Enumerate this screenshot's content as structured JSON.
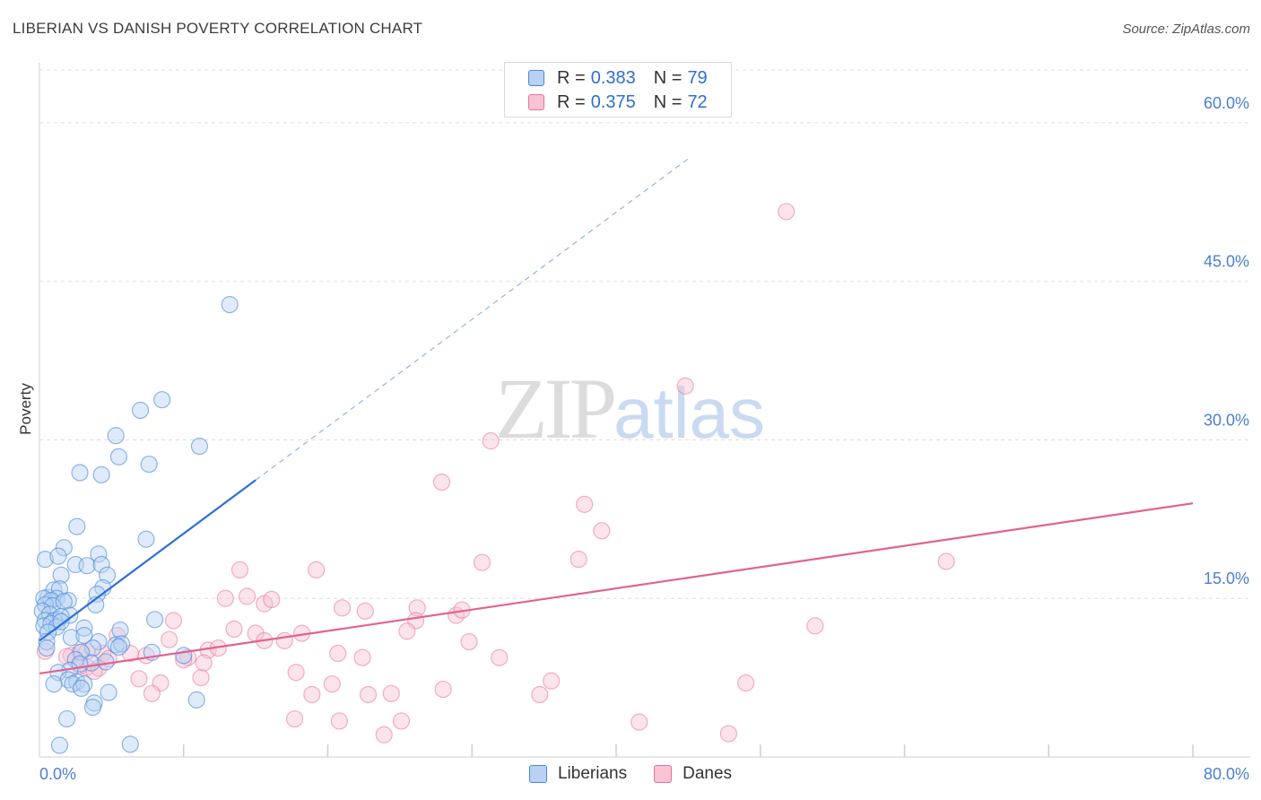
{
  "header": {
    "title": "LIBERIAN VS DANISH POVERTY CORRELATION CHART",
    "source": "Source: ZipAtlas.com"
  },
  "watermark": {
    "zip": "ZIP",
    "atlas": "atlas"
  },
  "colors": {
    "liberians": "#4a86d8",
    "liberians_fill": "#b9d2f3",
    "danes": "#e7719b",
    "danes_fill": "#f7c3d5",
    "tick_label": "#4a7fd0",
    "grid": "#dddddd"
  },
  "legend_top": {
    "rows": [
      {
        "r_label": "R =",
        "r_value": "0.383",
        "n_label": "N =",
        "n_value": "79"
      },
      {
        "r_label": "R =",
        "r_value": "0.375",
        "n_label": "N =",
        "n_value": "72"
      }
    ]
  },
  "legend_bottom": {
    "liberians": "Liberians",
    "danes": "Danes"
  },
  "chart_data": {
    "type": "scatter",
    "title": "LIBERIAN VS DANISH POVERTY CORRELATION CHART",
    "xlabel": "",
    "ylabel": "Poverty",
    "xlim": [
      0,
      80
    ],
    "ylim": [
      0,
      65
    ],
    "x_tick_labels": [
      "0.0%",
      "80.0%"
    ],
    "y_ticks": [
      15,
      30,
      45,
      60
    ],
    "y_tick_labels": [
      "15.0%",
      "30.0%",
      "45.0%",
      "60.0%"
    ],
    "grid": true,
    "series": [
      {
        "name": "Liberians",
        "r": 0.383,
        "n": 79,
        "trend": {
          "x0": 0,
          "y0": 11.0,
          "x1": 15,
          "y1": 26.2,
          "dashed_to_x": 45
        },
        "points": [
          [
            13.2,
            42.8
          ],
          [
            8.5,
            33.8
          ],
          [
            7.0,
            32.8
          ],
          [
            5.3,
            30.4
          ],
          [
            11.1,
            29.4
          ],
          [
            7.6,
            27.7
          ],
          [
            5.5,
            28.4
          ],
          [
            2.8,
            26.9
          ],
          [
            4.3,
            26.7
          ],
          [
            2.6,
            21.8
          ],
          [
            7.4,
            20.6
          ],
          [
            1.7,
            19.8
          ],
          [
            0.4,
            18.7
          ],
          [
            1.3,
            19.0
          ],
          [
            4.1,
            19.2
          ],
          [
            2.5,
            18.2
          ],
          [
            3.3,
            18.1
          ],
          [
            4.3,
            18.2
          ],
          [
            1.5,
            17.2
          ],
          [
            4.7,
            17.2
          ],
          [
            0.6,
            15.1
          ],
          [
            1.0,
            15.8
          ],
          [
            1.4,
            15.9
          ],
          [
            1.2,
            15.0
          ],
          [
            4.4,
            16.0
          ],
          [
            0.3,
            15.0
          ],
          [
            0.8,
            14.8
          ],
          [
            2.0,
            14.8
          ],
          [
            0.4,
            14.4
          ],
          [
            0.9,
            14.3
          ],
          [
            1.7,
            14.7
          ],
          [
            4.0,
            15.4
          ],
          [
            3.9,
            14.4
          ],
          [
            0.2,
            13.8
          ],
          [
            0.7,
            13.5
          ],
          [
            1.3,
            13.0
          ],
          [
            2.1,
            13.4
          ],
          [
            0.4,
            12.9
          ],
          [
            1.0,
            12.9
          ],
          [
            1.5,
            13.3
          ],
          [
            0.3,
            12.4
          ],
          [
            0.8,
            12.6
          ],
          [
            1.2,
            12.3
          ],
          [
            1.5,
            12.8
          ],
          [
            0.6,
            11.8
          ],
          [
            3.1,
            12.2
          ],
          [
            5.6,
            12.0
          ],
          [
            8.0,
            13.0
          ],
          [
            2.2,
            11.3
          ],
          [
            3.1,
            11.5
          ],
          [
            0.5,
            10.9
          ],
          [
            4.1,
            10.9
          ],
          [
            5.3,
            10.6
          ],
          [
            5.7,
            10.7
          ],
          [
            3.7,
            10.3
          ],
          [
            5.5,
            10.4
          ],
          [
            2.9,
            9.9
          ],
          [
            7.8,
            9.9
          ],
          [
            10.0,
            9.6
          ],
          [
            2.5,
            9.2
          ],
          [
            3.6,
            8.9
          ],
          [
            4.6,
            9.0
          ],
          [
            2.8,
            8.8
          ],
          [
            2.1,
            8.2
          ],
          [
            1.3,
            8.0
          ],
          [
            2.0,
            7.3
          ],
          [
            2.6,
            7.1
          ],
          [
            1.0,
            6.9
          ],
          [
            2.3,
            6.9
          ],
          [
            3.1,
            6.9
          ],
          [
            2.9,
            6.5
          ],
          [
            4.8,
            6.1
          ],
          [
            10.9,
            5.4
          ],
          [
            3.8,
            5.1
          ],
          [
            3.7,
            4.7
          ],
          [
            1.9,
            3.6
          ],
          [
            1.4,
            1.1
          ],
          [
            6.3,
            1.2
          ],
          [
            0.5,
            10.3
          ]
        ]
      },
      {
        "name": "Danes",
        "r": 0.375,
        "n": 72,
        "trend": {
          "x0": 0,
          "y0": 7.9,
          "x1": 80,
          "y1": 24.0
        },
        "points": [
          [
            51.8,
            51.6
          ],
          [
            44.8,
            35.1
          ],
          [
            31.3,
            29.9
          ],
          [
            27.9,
            26.0
          ],
          [
            37.8,
            23.9
          ],
          [
            39.0,
            21.4
          ],
          [
            62.9,
            18.5
          ],
          [
            30.7,
            18.4
          ],
          [
            37.4,
            18.7
          ],
          [
            13.9,
            17.7
          ],
          [
            19.2,
            17.7
          ],
          [
            12.9,
            15.0
          ],
          [
            14.4,
            15.2
          ],
          [
            15.6,
            14.5
          ],
          [
            16.1,
            14.9
          ],
          [
            21.0,
            14.1
          ],
          [
            22.6,
            13.8
          ],
          [
            26.2,
            14.1
          ],
          [
            28.9,
            13.4
          ],
          [
            29.3,
            13.9
          ],
          [
            9.3,
            12.9
          ],
          [
            26.1,
            12.9
          ],
          [
            53.8,
            12.4
          ],
          [
            13.5,
            12.1
          ],
          [
            15.0,
            11.7
          ],
          [
            18.2,
            11.7
          ],
          [
            25.5,
            11.9
          ],
          [
            5.4,
            11.5
          ],
          [
            9.0,
            11.1
          ],
          [
            15.6,
            11.0
          ],
          [
            17.0,
            11.0
          ],
          [
            29.8,
            10.9
          ],
          [
            11.7,
            10.1
          ],
          [
            12.4,
            10.3
          ],
          [
            2.8,
            9.9
          ],
          [
            2.2,
            9.6
          ],
          [
            1.9,
            9.5
          ],
          [
            3.3,
            10.0
          ],
          [
            4.4,
            9.8
          ],
          [
            7.4,
            9.6
          ],
          [
            10.3,
            9.4
          ],
          [
            6.3,
            9.8
          ],
          [
            20.7,
            9.8
          ],
          [
            22.4,
            9.4
          ],
          [
            31.9,
            9.4
          ],
          [
            10.0,
            9.2
          ],
          [
            4.8,
            9.3
          ],
          [
            11.4,
            8.9
          ],
          [
            3.3,
            8.5
          ],
          [
            4.1,
            8.4
          ],
          [
            2.8,
            8.6
          ],
          [
            3.8,
            8.1
          ],
          [
            17.8,
            8.0
          ],
          [
            11.2,
            7.5
          ],
          [
            6.9,
            7.4
          ],
          [
            8.4,
            7.0
          ],
          [
            20.3,
            6.9
          ],
          [
            35.5,
            7.2
          ],
          [
            49.0,
            7.0
          ],
          [
            28.0,
            6.4
          ],
          [
            7.8,
            6.0
          ],
          [
            18.9,
            5.9
          ],
          [
            22.8,
            5.9
          ],
          [
            24.4,
            6.0
          ],
          [
            34.7,
            5.9
          ],
          [
            17.7,
            3.6
          ],
          [
            20.8,
            3.4
          ],
          [
            25.1,
            3.4
          ],
          [
            41.6,
            3.3
          ],
          [
            23.9,
            2.1
          ],
          [
            47.8,
            2.2
          ],
          [
            0.4,
            10.0
          ]
        ]
      }
    ]
  }
}
